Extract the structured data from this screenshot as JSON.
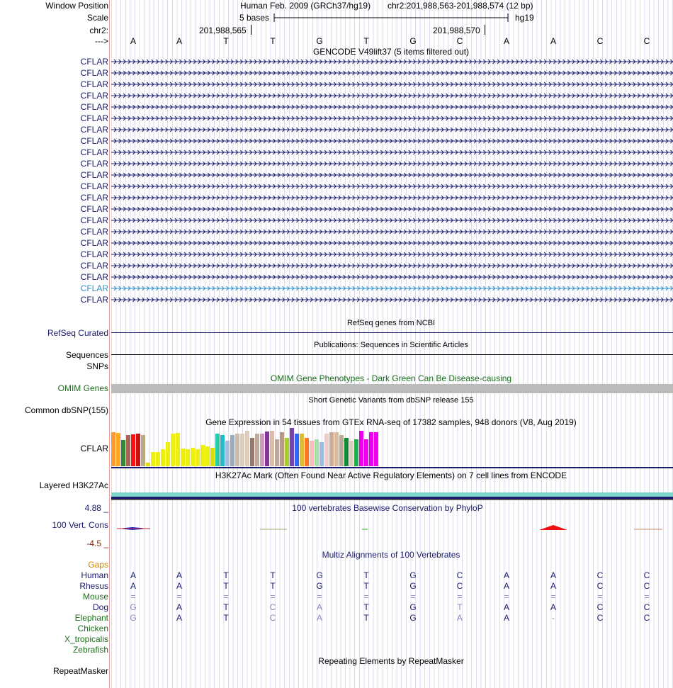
{
  "header": {
    "window_position_label": "Window Position",
    "scale_label": "Scale",
    "chrom_label": "chr2:",
    "strand_label": "--->",
    "assembly": "Human Feb. 2009 (GRCh37/hg19)",
    "position": "chr2:201,988,563-201,988,574 (12 bp)",
    "scale_text": "5 bases",
    "db": "hg19",
    "coord1": "201,988,565",
    "coord2": "201,988,570"
  },
  "bases": [
    "A",
    "A",
    "T",
    "T",
    "G",
    "T",
    "G",
    "C",
    "A",
    "A",
    "C",
    "C"
  ],
  "gencode": {
    "title": "GENCODE V49lift37 (5 items filtered out)",
    "items": [
      "CFLAR",
      "CFLAR",
      "CFLAR",
      "CFLAR",
      "CFLAR",
      "CFLAR",
      "CFLAR",
      "CFLAR",
      "CFLAR",
      "CFLAR",
      "CFLAR",
      "CFLAR",
      "CFLAR",
      "CFLAR",
      "CFLAR",
      "CFLAR",
      "CFLAR",
      "CFLAR",
      "CFLAR",
      "CFLAR",
      "CFLAR",
      "CFLAR"
    ]
  },
  "tracks": {
    "refseq_label": "RefSeq Curated",
    "refseq_title": "RefSeq genes from NCBI",
    "pubs_title": "Publications: Sequences in Scientific Articles",
    "sequences_label": "Sequences",
    "snps_label": "SNPs",
    "omim_title": "OMIM Gene Phenotypes - Dark Green Can Be Disease-causing",
    "omim_label": "OMIM Genes",
    "dbsnp_title": "Short Genetic Variants from dbSNP release 155",
    "dbsnp_label": "Common dbSNP(155)",
    "gtex_title": "Gene Expression in 54 tissues from GTEx RNA-seq of 17382 samples, 948 donors (V8, Aug 2019)",
    "gtex_label": "CFLAR",
    "h3k27_title": "H3K27Ac Mark (Often Found Near Active Regulatory Elements) on 7 cell lines from ENCODE",
    "h3k27_label": "Layered H3K27Ac",
    "cons_max": "4.88 _",
    "cons_label": "100 Vert. Cons",
    "cons_min": "-4.5 _",
    "cons_title": "100 vertebrates Basewise Conservation by PhyloP",
    "multiz_title": "Multiz Alignments of 100 Vertebrates",
    "gaps_label": "Gaps",
    "repeat_title": "Repeating Elements by RepeatMasker",
    "repeat_label": "RepeatMasker"
  },
  "gtex_values": [
    48,
    47,
    37,
    44,
    45,
    46,
    44,
    5,
    20,
    20,
    24,
    34,
    46,
    47,
    25,
    24,
    26,
    24,
    30,
    28,
    26,
    46,
    44,
    36,
    44,
    46,
    46,
    50,
    40,
    46,
    46,
    49,
    50,
    38,
    48,
    40,
    54,
    46,
    46,
    40,
    36,
    38,
    34,
    46,
    48,
    48,
    44,
    40,
    36,
    38,
    50,
    38,
    48,
    48
  ],
  "gtex_colors": [
    "#ff9933",
    "#ffaa22",
    "#338833",
    "#aa6655",
    "#ff1111",
    "#cc1111",
    "#bbaa88",
    "#dddd00",
    "#eeee11",
    "#eeee11",
    "#eeee11",
    "#eeee11",
    "#eeee11",
    "#eeee11",
    "#eeee11",
    "#eeee11",
    "#eeee11",
    "#eeee11",
    "#eeee11",
    "#eeee11",
    "#dddd00",
    "#22ccaa",
    "#22bbcc",
    "#aabbdd",
    "#99aabb",
    "#ccbbaa",
    "#ddccbb",
    "#ddccbb",
    "#997766",
    "#bbaa99",
    "#cc99bb",
    "#883399",
    "#ddbbaa",
    "#bbaa99",
    "#bb9988",
    "#aacc33",
    "#7744aa",
    "#3366ee",
    "#ddbb33",
    "#ff7722",
    "#ffbbbb",
    "#aaddaa",
    "#99bbdd",
    "#eecccc",
    "#ccaa99",
    "#ddbb99",
    "#bbaa99",
    "#118833",
    "#ddccbb",
    "#22aa55",
    "#ee00ee",
    "#ee00ee",
    "#ee00ee",
    "#ee00ee"
  ],
  "species": [
    {
      "name": "Human",
      "color": "#1a1a6e",
      "bases": [
        "A",
        "A",
        "T",
        "T",
        "G",
        "T",
        "G",
        "C",
        "A",
        "A",
        "C",
        "C"
      ]
    },
    {
      "name": "Rhesus",
      "color": "#1a1a6e",
      "bases": [
        "A",
        "A",
        "T",
        "T",
        "G",
        "T",
        "G",
        "C",
        "A",
        "A",
        "C",
        "C"
      ]
    },
    {
      "name": "Mouse",
      "color": "#1a6e1a",
      "bases": [
        "=",
        "=",
        "=",
        "=",
        "=",
        "=",
        "=",
        "=",
        "=",
        "=",
        "=",
        "="
      ]
    },
    {
      "name": "Dog",
      "color": "#1a1a6e",
      "bases": [
        "G",
        "A",
        "T",
        "C",
        "A",
        "T",
        "G",
        "T",
        "A",
        "A",
        "C",
        "C"
      ]
    },
    {
      "name": "Elephant",
      "color": "#1a6e1a",
      "bases": [
        "G",
        "A",
        "T",
        "C",
        "A",
        "T",
        "G",
        "A",
        "A",
        "-",
        "C",
        "C"
      ]
    },
    {
      "name": "Chicken",
      "color": "#1a6e1a",
      "bases": [
        "",
        "",
        "",
        "",
        "",
        "",
        "",
        "",
        "",
        "",
        "",
        ""
      ]
    },
    {
      "name": "X_tropicalis",
      "color": "#1a6e1a",
      "bases": [
        "",
        "",
        "",
        "",
        "",
        "",
        "",
        "",
        "",
        "",
        "",
        ""
      ]
    },
    {
      "name": "Zebrafish",
      "color": "#1a6e1a",
      "bases": [
        "",
        "",
        "",
        "",
        "",
        "",
        "",
        "",
        "",
        "",
        "",
        ""
      ]
    }
  ],
  "colors": {
    "navy": "#1a1a6e",
    "omim_green": "#1a6e1a",
    "omim_bar": "#bbbbbb",
    "h3k27_teal": "#7dd8cc",
    "cons_max": "#1a1a6e",
    "cons_min": "#8b2200",
    "selected_cflar": "#2b8fc8"
  }
}
